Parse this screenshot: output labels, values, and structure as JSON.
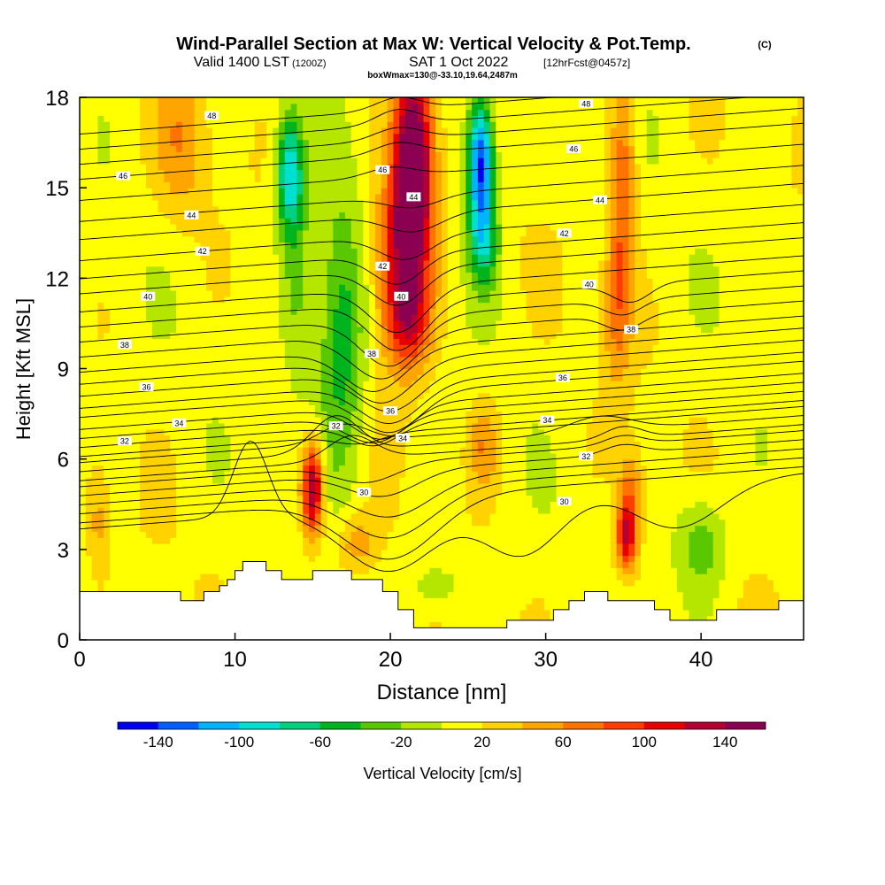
{
  "title": {
    "main": "Wind-Parallel Section at Max W: Vertical Velocity & Pot.Temp.",
    "copyright": "(C)",
    "valid": "Valid 1400 LST",
    "valid_utc": "(1200Z)",
    "date": "SAT 1 Oct 2022",
    "fcst": "[12hrFcst@0457z]",
    "box": "boxWmax=130@-33.10,19.64,2487m"
  },
  "chart_data": {
    "type": "heatmap",
    "xlabel": "Distance [nm]",
    "ylabel": "Height [Kft MSL]",
    "xlim": [
      0,
      46.6
    ],
    "ylim": [
      0,
      18
    ],
    "xticks": [
      0,
      10,
      20,
      30,
      40
    ],
    "yticks": [
      0,
      3,
      6,
      9,
      12,
      15,
      18
    ],
    "colorbar": {
      "label": "Vertical Velocity [cm/s]",
      "min": -160,
      "max": 160,
      "step": 20,
      "tick_values": [
        -140,
        -100,
        -60,
        -20,
        20,
        60,
        100,
        140
      ],
      "tick_labels": [
        "-140",
        "-100",
        "-60",
        "-20",
        "20",
        "60",
        "100",
        "140"
      ],
      "colors": [
        "#0000f0",
        "#0060ff",
        "#00b4ff",
        "#00e0d0",
        "#00d080",
        "#00b41e",
        "#5ac800",
        "#b4e600",
        "#ffff00",
        "#ffd200",
        "#ffa500",
        "#ff7300",
        "#ff3c00",
        "#e60000",
        "#b40032",
        "#8b0050"
      ]
    },
    "terrain_kft": [
      [
        0,
        1.6
      ],
      [
        6.5,
        1.6
      ],
      [
        6.5,
        1.3
      ],
      [
        8,
        1.3
      ],
      [
        8,
        1.6
      ],
      [
        9,
        1.6
      ],
      [
        9,
        1.8
      ],
      [
        9.5,
        1.8
      ],
      [
        9.5,
        2.0
      ],
      [
        10,
        2.0
      ],
      [
        10,
        2.3
      ],
      [
        10.5,
        2.3
      ],
      [
        10.5,
        2.6
      ],
      [
        12,
        2.6
      ],
      [
        12,
        2.3
      ],
      [
        13,
        2.3
      ],
      [
        13,
        2.0
      ],
      [
        15,
        2.0
      ],
      [
        15,
        2.3
      ],
      [
        17.5,
        2.3
      ],
      [
        17.5,
        2.0
      ],
      [
        19.5,
        2.0
      ],
      [
        19.5,
        1.6
      ],
      [
        20.5,
        1.6
      ],
      [
        20.5,
        1.0
      ],
      [
        21.5,
        1.0
      ],
      [
        21.5,
        0.4
      ],
      [
        27.5,
        0.4
      ],
      [
        27.5,
        0.65
      ],
      [
        30.5,
        0.65
      ],
      [
        30.5,
        1.0
      ],
      [
        31.5,
        1.0
      ],
      [
        31.5,
        1.3
      ],
      [
        32.5,
        1.3
      ],
      [
        32.5,
        1.6
      ],
      [
        34,
        1.6
      ],
      [
        34,
        1.3
      ],
      [
        37,
        1.3
      ],
      [
        37,
        1.0
      ],
      [
        38,
        1.0
      ],
      [
        38,
        0.65
      ],
      [
        41,
        0.65
      ],
      [
        41,
        1.0
      ],
      [
        45,
        1.0
      ],
      [
        45,
        1.3
      ],
      [
        46.6,
        1.3
      ]
    ],
    "w_features": [
      {
        "x": 21.5,
        "z": 16.0,
        "sx": 0.85,
        "sz": 2.2,
        "amp": 170
      },
      {
        "x": 20.8,
        "z": 12.6,
        "sx": 1.2,
        "sz": 2.2,
        "amp": 115
      },
      {
        "x": 21.2,
        "z": 10.5,
        "sx": 1.0,
        "sz": 1.0,
        "amp": 55
      },
      {
        "x": 15.0,
        "z": 5.0,
        "sx": 0.5,
        "sz": 1.1,
        "amp": 145
      },
      {
        "x": 35.2,
        "z": 3.4,
        "sx": 0.5,
        "sz": 0.8,
        "amp": 110
      },
      {
        "x": 35.5,
        "z": 5.0,
        "sx": 0.55,
        "sz": 0.9,
        "amp": 55
      },
      {
        "x": 35.0,
        "z": 15.0,
        "sx": 0.6,
        "sz": 3.0,
        "amp": 65
      },
      {
        "x": 34.5,
        "z": 11.0,
        "sx": 0.6,
        "sz": 1.8,
        "amp": 45
      },
      {
        "x": 6.5,
        "z": 16.5,
        "sx": 1.2,
        "sz": 1.8,
        "amp": 40
      },
      {
        "x": 1.2,
        "z": 4.0,
        "sx": 0.5,
        "sz": 1.2,
        "amp": 35
      },
      {
        "x": 17.8,
        "z": 3.2,
        "sx": 0.9,
        "sz": 0.7,
        "amp": 45
      },
      {
        "x": 26.0,
        "z": 6.5,
        "sx": 0.7,
        "sz": 1.0,
        "amp": 45
      },
      {
        "x": 25.8,
        "z": 16.0,
        "sx": 0.6,
        "sz": 1.5,
        "amp": -160
      },
      {
        "x": 26.0,
        "z": 13.3,
        "sx": 0.7,
        "sz": 1.2,
        "amp": -80
      },
      {
        "x": 13.5,
        "z": 15.5,
        "sx": 0.6,
        "sz": 1.4,
        "amp": -105
      },
      {
        "x": 16.8,
        "z": 10.0,
        "sx": 1.1,
        "sz": 3.2,
        "amp": -70
      },
      {
        "x": 14.0,
        "z": 12.0,
        "sx": 0.7,
        "sz": 2.5,
        "amp": -40
      },
      {
        "x": 40.0,
        "z": 3.2,
        "sx": 1.2,
        "sz": 1.2,
        "amp": -48
      },
      {
        "x": 23.0,
        "z": 1.8,
        "sx": 1.2,
        "sz": 0.6,
        "amp": -30
      }
    ],
    "contours": [
      {
        "label": "30",
        "z0": 4.6,
        "bumps": [
          [
            11,
            1.1,
            2.5
          ],
          [
            20,
            3.0,
            -2.2
          ],
          [
            28.5,
            2.5,
            -2.0
          ],
          [
            38.5,
            2.8,
            -1.5
          ]
        ],
        "label_positions": [
          [
            18.3,
            4.9
          ],
          [
            31.2,
            4.6
          ]
        ]
      },
      {
        "label": "32",
        "z0": 6.5,
        "bumps": [
          [
            16.5,
            1.5,
            1.2
          ],
          [
            33.5,
            2.0,
            0.5
          ]
        ],
        "label_positions": [
          [
            2.9,
            6.6
          ],
          [
            16.5,
            7.1
          ],
          [
            32.6,
            6.1
          ]
        ]
      },
      {
        "label": "34",
        "z0": 7.3,
        "bumps": [
          [
            19,
            1.6,
            -0.7
          ]
        ],
        "label_positions": [
          [
            6.4,
            7.2
          ],
          [
            20.8,
            6.7
          ],
          [
            30.1,
            7.3
          ]
        ]
      },
      {
        "label": "36",
        "z0": 8.3,
        "bumps": [
          [
            20,
            2.0,
            -1.3
          ]
        ],
        "label_positions": [
          [
            4.3,
            8.4
          ],
          [
            20.0,
            7.6
          ],
          [
            31.1,
            8.7
          ]
        ]
      },
      {
        "label": "38",
        "z0": 9.8,
        "bumps": [
          [
            19,
            2.0,
            -1.4
          ]
        ],
        "label_positions": [
          [
            2.9,
            9.8
          ],
          [
            18.8,
            9.5
          ],
          [
            35.5,
            10.3
          ]
        ]
      },
      {
        "label": "40",
        "z0": 11.3,
        "bumps": [
          [
            20.5,
            1.8,
            -1.6
          ],
          [
            35.5,
            1.2,
            -0.6
          ]
        ],
        "label_positions": [
          [
            4.4,
            11.4
          ],
          [
            20.7,
            11.4
          ],
          [
            32.8,
            11.8
          ]
        ]
      },
      {
        "label": "42",
        "z0": 12.9,
        "bumps": [
          [
            20.5,
            1.6,
            -1.0
          ]
        ],
        "label_positions": [
          [
            7.9,
            12.9
          ],
          [
            19.5,
            12.4
          ],
          [
            31.2,
            13.5
          ]
        ]
      },
      {
        "label": "44",
        "z0": 14.2,
        "bumps": [
          [
            21.5,
            1.8,
            -0.6
          ]
        ],
        "label_positions": [
          [
            7.2,
            14.1
          ],
          [
            21.5,
            14.7
          ],
          [
            33.5,
            14.6
          ]
        ]
      },
      {
        "label": "46",
        "z0": 15.5,
        "bumps": [
          [
            20.0,
            1.5,
            0.3
          ]
        ],
        "label_positions": [
          [
            2.8,
            15.4
          ],
          [
            19.5,
            15.6
          ],
          [
            31.8,
            16.3
          ]
        ]
      },
      {
        "label": "48",
        "z0": 17.2,
        "bumps": [
          [
            20.5,
            1.4,
            0.5
          ]
        ],
        "label_positions": [
          [
            8.5,
            17.4
          ],
          [
            32.6,
            17.8
          ]
        ]
      }
    ],
    "extra_contours": [
      {
        "z0": 4.8,
        "bumps": [
          [
            20,
            3.0,
            -2.0
          ]
        ]
      },
      {
        "z0": 5.1,
        "bumps": [
          [
            20,
            2.8,
            -1.6
          ]
        ]
      },
      {
        "z0": 5.4,
        "bumps": [
          [
            20,
            2.6,
            -1.2
          ]
        ]
      },
      {
        "z0": 5.7,
        "bumps": [
          [
            19.5,
            2.2,
            -0.8
          ],
          [
            35,
            1.2,
            0.3
          ]
        ]
      },
      {
        "z0": 6.0,
        "bumps": [
          [
            18.5,
            2.0,
            -0.6
          ],
          [
            35,
            1.2,
            0.3
          ]
        ]
      },
      {
        "z0": 6.2,
        "bumps": [
          [
            17.5,
            1.5,
            0.8
          ],
          [
            35,
            1.2,
            0.4
          ]
        ]
      },
      {
        "z0": 6.8,
        "bumps": [
          [
            17,
            1.5,
            0.6
          ]
        ]
      },
      {
        "z0": 7.0,
        "bumps": [
          [
            18,
            1.5,
            -0.3
          ]
        ]
      },
      {
        "z0": 7.6,
        "bumps": [
          [
            19,
            1.8,
            -0.9
          ]
        ]
      },
      {
        "z0": 7.9,
        "bumps": [
          [
            19.5,
            1.8,
            -1.1
          ]
        ]
      },
      {
        "z0": 8.6,
        "bumps": [
          [
            20,
            2.0,
            -1.3
          ]
        ]
      },
      {
        "z0": 9.0,
        "bumps": [
          [
            20,
            2.0,
            -1.3
          ]
        ]
      },
      {
        "z0": 9.4,
        "bumps": [
          [
            19.5,
            2.0,
            -1.4
          ]
        ]
      },
      {
        "z0": 10.3,
        "bumps": [
          [
            19.5,
            2.0,
            -1.5
          ],
          [
            35,
            1.2,
            -0.5
          ]
        ]
      },
      {
        "z0": 10.8,
        "bumps": [
          [
            20,
            1.9,
            -1.6
          ],
          [
            35,
            1.2,
            -0.5
          ]
        ]
      },
      {
        "z0": 11.8,
        "bumps": [
          [
            20.5,
            1.8,
            -1.5
          ]
        ]
      },
      {
        "z0": 12.4,
        "bumps": [
          [
            20.5,
            1.7,
            -1.2
          ]
        ]
      },
      {
        "z0": 13.5,
        "bumps": [
          [
            21,
            1.7,
            -0.8
          ]
        ]
      },
      {
        "z0": 14.8,
        "bumps": [
          [
            21.5,
            1.7,
            -0.4
          ]
        ]
      },
      {
        "z0": 16.2,
        "bumps": [
          [
            20.5,
            1.5,
            0.4
          ]
        ]
      },
      {
        "z0": 16.7,
        "bumps": [
          [
            20.5,
            1.5,
            0.4
          ]
        ]
      },
      {
        "z0": 17.7,
        "bumps": [
          [
            20.5,
            1.4,
            0.4
          ]
        ]
      }
    ]
  }
}
